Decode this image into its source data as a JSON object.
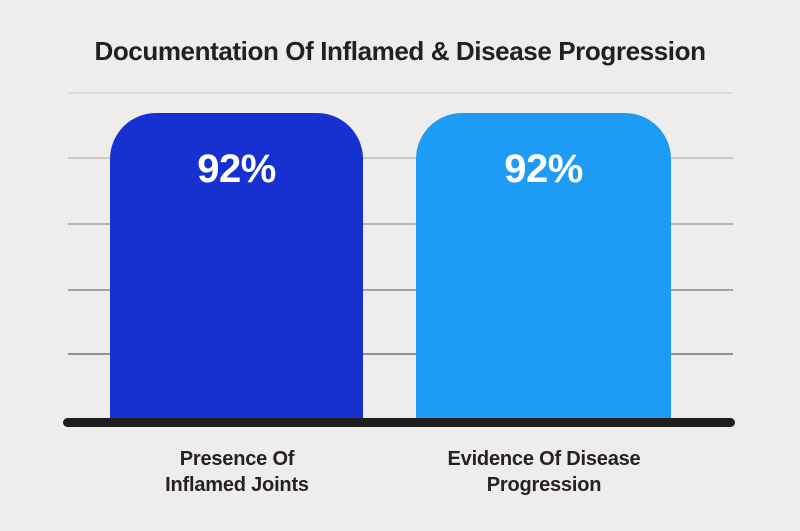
{
  "chart_data": {
    "type": "bar",
    "title": "Documentation Of Inflamed & Disease Progression",
    "categories": [
      "Presence Of Inflamed Joints",
      "Evidence Of Disease Progression"
    ],
    "values": [
      92,
      92
    ],
    "value_labels": [
      "92%",
      "92%"
    ],
    "bar_colors": [
      "#1731d1",
      "#1e9bf5"
    ],
    "xlabel": "",
    "ylabel": "",
    "ylim": [
      0,
      100
    ],
    "grid": true,
    "legend": false
  },
  "bars": [
    {
      "value": "92%",
      "color": "#1731d1",
      "label_lines": [
        "Presence Of",
        "Inflamed Joints"
      ]
    },
    {
      "value": "92%",
      "color": "#1e9bf5",
      "label_lines": [
        "Evidence Of Disease",
        "Progression"
      ]
    }
  ],
  "grid": {
    "colors": [
      "#dcdcdc",
      "#cacaca",
      "#b5b5b5",
      "#a2a2a2",
      "#909090"
    ]
  },
  "colors": {
    "background": "#eeedec",
    "axis": "#1f1d1e",
    "title_text": "#232021",
    "label_text": "#262122",
    "value_text": "#ffffff"
  }
}
